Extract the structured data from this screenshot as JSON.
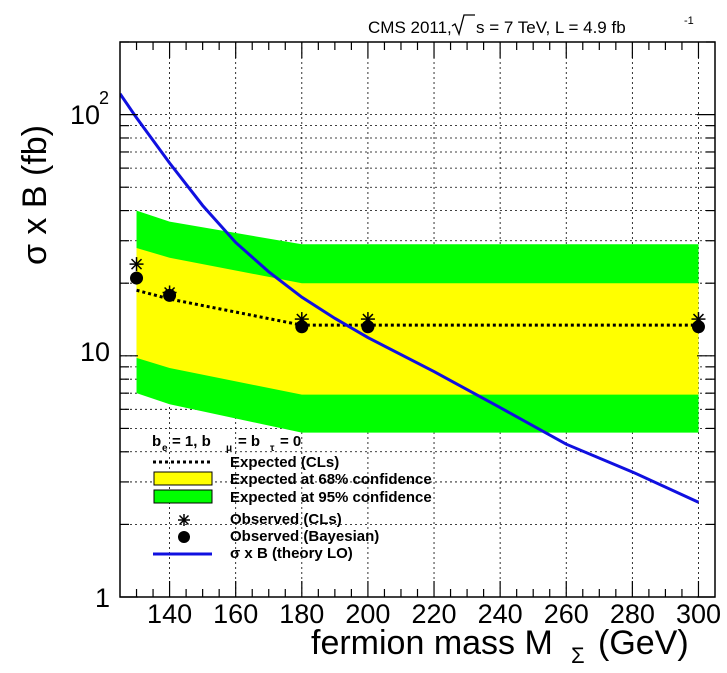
{
  "header": {
    "experiment": "CMS 2011,",
    "energy": "s = 7 TeV, L = 4.9 fb",
    "lumi_exp": "-1"
  },
  "chart_data": {
    "type": "line",
    "x": [
      130,
      140,
      180,
      200,
      300
    ],
    "xlabel": "fermion mass M",
    "xlabel_sub": "Σ",
    "xlabel_unit": "(GeV)",
    "ylabel": "σ x B (fb)",
    "xlim": [
      125,
      305
    ],
    "ylim": [
      1,
      200
    ],
    "yscale": "log",
    "x_ticks": [
      140,
      160,
      180,
      200,
      220,
      240,
      260,
      280,
      300
    ],
    "y_tick_labels": {
      "y1": "1",
      "y10": "10",
      "y100_base": "10",
      "y100_exp": "2"
    },
    "grid": true,
    "legend_position": "bottom-left",
    "band_95": {
      "name": "Expected at 95% confidence",
      "color": "#00ff00",
      "low": [
        7.0,
        6.3,
        4.8,
        4.8,
        4.8
      ],
      "high": [
        40,
        36,
        29,
        29,
        29
      ]
    },
    "band_68": {
      "name": "Expected at 68% confidence",
      "color": "#ffff00",
      "low": [
        9.8,
        8.9,
        6.9,
        6.9,
        6.9
      ],
      "high": [
        28,
        25.5,
        20,
        20,
        20
      ]
    },
    "series": [
      {
        "name": "Expected (CLs)",
        "style": "dotted",
        "color": "#000000",
        "values": [
          18.7,
          17.2,
          13.4,
          13.4,
          13.4
        ]
      },
      {
        "name": "Observed (CLs)",
        "marker": "star",
        "color": "#000000",
        "values": [
          24,
          18.3,
          14.2,
          14.2,
          14.2
        ]
      },
      {
        "name": "Observed (Bayesian)",
        "marker": "circle",
        "color": "#000000",
        "values": [
          21,
          17.8,
          13.2,
          13.2,
          13.2
        ]
      }
    ],
    "theory": {
      "name": "σ x B (theory LO)",
      "color": "#1010e0",
      "x": [
        125,
        130,
        140,
        150,
        160,
        170,
        180,
        190,
        200,
        220,
        240,
        260,
        280,
        300
      ],
      "values": [
        122,
        97,
        63,
        42,
        29.5,
        22.3,
        17.5,
        14.3,
        11.9,
        8.6,
        6.1,
        4.3,
        3.3,
        2.47
      ]
    },
    "legend": {
      "header": "b",
      "header_sub_e": "e",
      "header_mid": "= 1, b",
      "header_sub_mu": "μ",
      "header_mid2": "= b",
      "header_sub_tau": "τ",
      "header_end": "= 0"
    }
  }
}
